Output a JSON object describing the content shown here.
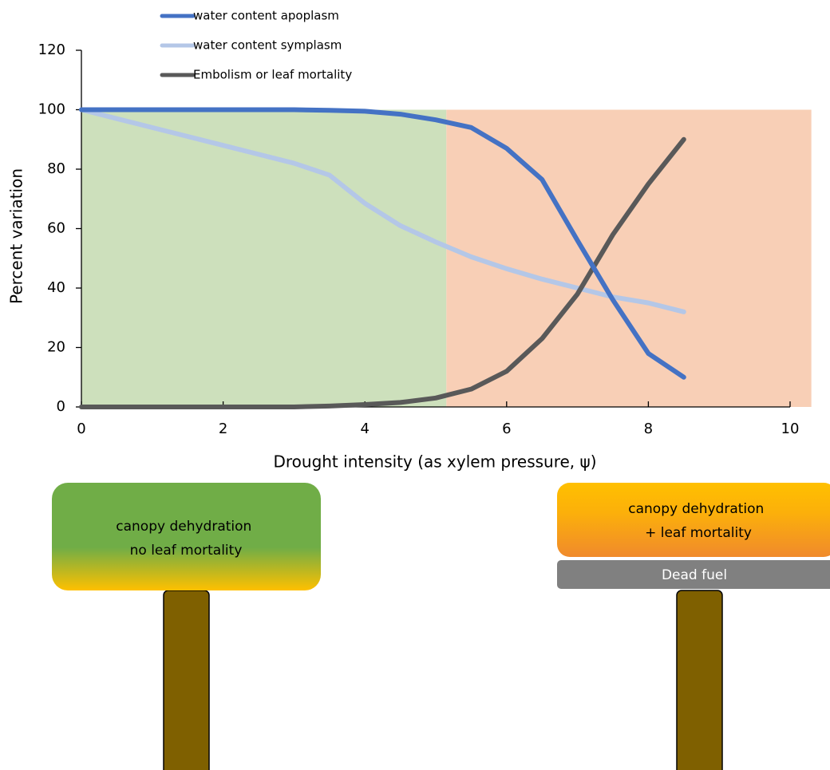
{
  "chart_data": {
    "type": "line",
    "x_label": "Drought intensity (as xylem pressure, ψ)",
    "y_label": "Percent variation",
    "x": [
      0,
      0.5,
      1,
      1.5,
      2,
      2.5,
      3,
      3.5,
      4,
      4.5,
      5,
      5.5,
      6,
      6.5,
      7,
      7.5,
      8,
      8.5
    ],
    "series": [
      {
        "name": "water content apoplasm",
        "color": "#4472c4",
        "values": [
          100,
          100,
          100,
          100,
          100,
          100,
          100,
          99.8,
          99.5,
          98.5,
          96.6,
          94,
          87,
          76.5,
          56,
          36,
          18,
          10
        ]
      },
      {
        "name": "water content symplasm",
        "color": "#b4c7e7",
        "values": [
          100,
          97,
          94,
          91,
          88,
          85,
          82,
          78,
          68.5,
          61,
          55.5,
          50.5,
          46.5,
          43,
          40,
          37,
          35,
          32
        ]
      },
      {
        "name": "Embolism or leaf mortality",
        "color": "#595959",
        "values": [
          0,
          0,
          0,
          0,
          0,
          0,
          0,
          0.3,
          0.8,
          1.5,
          3,
          6,
          12,
          23,
          38,
          58,
          75,
          90
        ]
      }
    ],
    "regions": [
      {
        "color": "#cde0bc",
        "xlim": [
          0,
          5.15
        ],
        "ylim": [
          0,
          100
        ]
      },
      {
        "color": "#f8cfb6",
        "xlim": [
          5.15,
          10.3
        ],
        "ylim": [
          0,
          100
        ]
      }
    ],
    "xlim": [
      0,
      10
    ],
    "xticks": [
      0,
      2,
      4,
      6,
      8,
      10
    ],
    "ylim": [
      0,
      120
    ],
    "yticks": [
      0,
      20,
      40,
      60,
      80,
      100,
      120
    ],
    "annotations": [
      {
        "lines": [
          "canopy dehydration",
          "no leaf mortality"
        ]
      },
      {
        "lines": [
          "canopy dehydration",
          "+ leaf mortality"
        ]
      },
      {
        "lines": [
          "Dead fuel"
        ]
      }
    ]
  }
}
